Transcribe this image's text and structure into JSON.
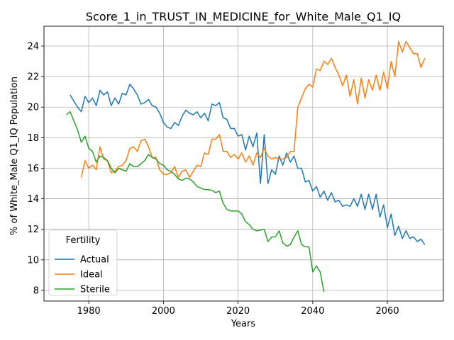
{
  "chart_data": {
    "type": "line",
    "title": "Score_1_in_TRUST_IN_MEDICINE_for_White_Male_Q1_IQ",
    "xlabel": "Years",
    "ylabel": "% of White_Male Q1_IQ Population",
    "xlim": [
      1968,
      2075
    ],
    "ylim": [
      7.3,
      25.3
    ],
    "xticks": [
      1980,
      2000,
      2020,
      2040,
      2060
    ],
    "yticks": [
      8,
      10,
      12,
      14,
      16,
      18,
      20,
      22,
      24
    ],
    "grid": true,
    "legend": {
      "title": "Fertility",
      "placement": "lower-left"
    },
    "series": [
      {
        "name": "Actual",
        "color": "#1f77b4",
        "points": [
          [
            1975,
            20.8
          ],
          [
            1976,
            20.4
          ],
          [
            1977,
            20.0
          ],
          [
            1978,
            19.7
          ],
          [
            1979,
            20.7
          ],
          [
            1980,
            20.3
          ],
          [
            1981,
            20.6
          ],
          [
            1982,
            20.1
          ],
          [
            1983,
            21.1
          ],
          [
            1984,
            20.8
          ],
          [
            1985,
            21.0
          ],
          [
            1986,
            20.1
          ],
          [
            1987,
            20.6
          ],
          [
            1988,
            20.2
          ],
          [
            1989,
            20.9
          ],
          [
            1990,
            20.8
          ],
          [
            1991,
            21.5
          ],
          [
            1992,
            21.2
          ],
          [
            1993,
            20.8
          ],
          [
            1994,
            20.2
          ],
          [
            1995,
            20.3
          ],
          [
            1996,
            20.5
          ],
          [
            1997,
            20.1
          ],
          [
            1998,
            20.0
          ],
          [
            1999,
            19.6
          ],
          [
            2000,
            19.0
          ],
          [
            2001,
            18.7
          ],
          [
            2002,
            18.6
          ],
          [
            2003,
            19.0
          ],
          [
            2004,
            18.8
          ],
          [
            2005,
            19.4
          ],
          [
            2006,
            19.8
          ],
          [
            2007,
            19.6
          ],
          [
            2008,
            19.5
          ],
          [
            2009,
            19.7
          ],
          [
            2010,
            19.3
          ],
          [
            2011,
            19.6
          ],
          [
            2012,
            19.1
          ],
          [
            2013,
            20.2
          ],
          [
            2014,
            20.1
          ],
          [
            2015,
            20.3
          ],
          [
            2016,
            19.3
          ],
          [
            2017,
            19.2
          ],
          [
            2018,
            18.6
          ],
          [
            2019,
            18.6
          ],
          [
            2020,
            18.1
          ],
          [
            2021,
            18.2
          ],
          [
            2022,
            17.2
          ],
          [
            2023,
            18.1
          ],
          [
            2024,
            17.4
          ],
          [
            2025,
            18.3
          ],
          [
            2026,
            15.0
          ],
          [
            2027,
            18.2
          ],
          [
            2028,
            15.0
          ],
          [
            2029,
            15.9
          ],
          [
            2030,
            15.6
          ],
          [
            2031,
            16.8
          ],
          [
            2032,
            16.2
          ],
          [
            2033,
            17.0
          ],
          [
            2034,
            16.4
          ],
          [
            2035,
            16.8
          ],
          [
            2036,
            16.0
          ],
          [
            2037,
            16.0
          ],
          [
            2038,
            15.1
          ],
          [
            2039,
            15.2
          ],
          [
            2040,
            14.5
          ],
          [
            2041,
            14.8
          ],
          [
            2042,
            14.1
          ],
          [
            2043,
            14.5
          ],
          [
            2044,
            13.9
          ],
          [
            2045,
            14.4
          ],
          [
            2046,
            13.8
          ],
          [
            2047,
            13.9
          ],
          [
            2048,
            13.5
          ],
          [
            2049,
            13.6
          ],
          [
            2050,
            13.5
          ],
          [
            2051,
            14.0
          ],
          [
            2052,
            13.5
          ],
          [
            2053,
            14.3
          ],
          [
            2054,
            13.3
          ],
          [
            2055,
            14.3
          ],
          [
            2056,
            13.3
          ],
          [
            2057,
            14.3
          ],
          [
            2058,
            12.8
          ],
          [
            2059,
            13.6
          ],
          [
            2060,
            12.1
          ],
          [
            2061,
            13.0
          ],
          [
            2062,
            11.6
          ],
          [
            2063,
            12.2
          ],
          [
            2064,
            11.4
          ],
          [
            2065,
            11.9
          ],
          [
            2066,
            11.4
          ],
          [
            2067,
            11.5
          ],
          [
            2068,
            11.2
          ],
          [
            2069,
            11.35
          ],
          [
            2070,
            11.0
          ]
        ]
      },
      {
        "name": "Ideal",
        "color": "#ff7f0e",
        "points": [
          [
            1978,
            15.4
          ],
          [
            1979,
            16.5
          ],
          [
            1980,
            16.0
          ],
          [
            1981,
            16.2
          ],
          [
            1982,
            15.9
          ],
          [
            1983,
            17.4
          ],
          [
            1984,
            16.6
          ],
          [
            1985,
            16.5
          ],
          [
            1986,
            15.7
          ],
          [
            1987,
            15.8
          ],
          [
            1988,
            16.1
          ],
          [
            1989,
            16.2
          ],
          [
            1990,
            16.5
          ],
          [
            1991,
            17.3
          ],
          [
            1992,
            17.4
          ],
          [
            1993,
            17.1
          ],
          [
            1994,
            17.8
          ],
          [
            1995,
            17.9
          ],
          [
            1996,
            17.4
          ],
          [
            1997,
            16.7
          ],
          [
            1998,
            16.7
          ],
          [
            1999,
            15.9
          ],
          [
            2000,
            15.6
          ],
          [
            2001,
            15.6
          ],
          [
            2002,
            15.7
          ],
          [
            2003,
            16.1
          ],
          [
            2004,
            15.4
          ],
          [
            2005,
            15.8
          ],
          [
            2006,
            15.9
          ],
          [
            2007,
            15.4
          ],
          [
            2008,
            15.8
          ],
          [
            2009,
            16.2
          ],
          [
            2010,
            16.1
          ],
          [
            2011,
            17.0
          ],
          [
            2012,
            16.9
          ],
          [
            2013,
            17.9
          ],
          [
            2014,
            17.9
          ],
          [
            2015,
            18.2
          ],
          [
            2016,
            17.1
          ],
          [
            2017,
            17.1
          ],
          [
            2018,
            16.7
          ],
          [
            2019,
            16.9
          ],
          [
            2020,
            16.6
          ],
          [
            2021,
            17.0
          ],
          [
            2022,
            16.4
          ],
          [
            2023,
            16.8
          ],
          [
            2024,
            16.2
          ],
          [
            2025,
            17.0
          ],
          [
            2026,
            16.7
          ],
          [
            2027,
            17.3
          ],
          [
            2028,
            16.8
          ],
          [
            2029,
            16.6
          ],
          [
            2030,
            16.7
          ],
          [
            2031,
            16.6
          ],
          [
            2032,
            16.6
          ],
          [
            2033,
            16.7
          ],
          [
            2034,
            17.1
          ],
          [
            2035,
            17.1
          ],
          [
            2036,
            20.0
          ],
          [
            2037,
            20.6
          ],
          [
            2038,
            21.2
          ],
          [
            2039,
            21.5
          ],
          [
            2040,
            21.3
          ],
          [
            2041,
            22.5
          ],
          [
            2042,
            22.4
          ],
          [
            2043,
            23.0
          ],
          [
            2044,
            22.8
          ],
          [
            2045,
            23.2
          ],
          [
            2046,
            22.6
          ],
          [
            2047,
            22.1
          ],
          [
            2048,
            21.4
          ],
          [
            2049,
            22.1
          ],
          [
            2050,
            20.7
          ],
          [
            2051,
            21.8
          ],
          [
            2052,
            20.2
          ],
          [
            2053,
            21.9
          ],
          [
            2054,
            20.6
          ],
          [
            2055,
            21.8
          ],
          [
            2056,
            21.1
          ],
          [
            2057,
            22.1
          ],
          [
            2058,
            21.1
          ],
          [
            2059,
            22.3
          ],
          [
            2060,
            21.2
          ],
          [
            2061,
            23.0
          ],
          [
            2062,
            22.0
          ],
          [
            2063,
            24.3
          ],
          [
            2064,
            23.6
          ],
          [
            2065,
            24.3
          ],
          [
            2066,
            23.9
          ],
          [
            2067,
            23.5
          ],
          [
            2068,
            23.5
          ],
          [
            2069,
            22.6
          ],
          [
            2070,
            23.2
          ]
        ]
      },
      {
        "name": "Sterile",
        "color": "#2ca02c",
        "points": [
          [
            1974,
            19.5
          ],
          [
            1975,
            19.7
          ],
          [
            1976,
            19.1
          ],
          [
            1977,
            18.5
          ],
          [
            1978,
            17.7
          ],
          [
            1979,
            18.1
          ],
          [
            1980,
            17.3
          ],
          [
            1981,
            17.1
          ],
          [
            1982,
            16.4
          ],
          [
            1983,
            16.8
          ],
          [
            1984,
            16.7
          ],
          [
            1985,
            16.5
          ],
          [
            1986,
            16.0
          ],
          [
            1987,
            15.7
          ],
          [
            1988,
            16.0
          ],
          [
            1989,
            15.9
          ],
          [
            1990,
            15.8
          ],
          [
            1991,
            16.3
          ],
          [
            1992,
            16.1
          ],
          [
            1993,
            16.1
          ],
          [
            1994,
            16.3
          ],
          [
            1995,
            16.5
          ],
          [
            1996,
            16.9
          ],
          [
            1997,
            16.7
          ],
          [
            1998,
            16.6
          ],
          [
            1999,
            16.3
          ],
          [
            2000,
            16.2
          ],
          [
            2001,
            15.9
          ],
          [
            2002,
            15.8
          ],
          [
            2003,
            15.6
          ],
          [
            2004,
            15.3
          ],
          [
            2005,
            15.2
          ],
          [
            2006,
            15.35
          ],
          [
            2007,
            15.3
          ],
          [
            2008,
            15.1
          ],
          [
            2009,
            14.8
          ],
          [
            2010,
            14.7
          ],
          [
            2011,
            14.6
          ],
          [
            2012,
            14.6
          ],
          [
            2013,
            14.55
          ],
          [
            2014,
            14.4
          ],
          [
            2015,
            14.5
          ],
          [
            2016,
            13.7
          ],
          [
            2017,
            13.3
          ],
          [
            2018,
            13.2
          ],
          [
            2019,
            13.2
          ],
          [
            2020,
            13.2
          ],
          [
            2021,
            13.0
          ],
          [
            2022,
            12.5
          ],
          [
            2023,
            12.3
          ],
          [
            2024,
            12.0
          ],
          [
            2025,
            11.9
          ],
          [
            2026,
            11.95
          ],
          [
            2027,
            12.0
          ],
          [
            2028,
            11.2
          ],
          [
            2029,
            11.5
          ],
          [
            2030,
            11.5
          ],
          [
            2031,
            11.9
          ],
          [
            2032,
            11.1
          ],
          [
            2033,
            10.9
          ],
          [
            2034,
            11.0
          ],
          [
            2035,
            11.5
          ],
          [
            2036,
            11.9
          ],
          [
            2037,
            11.0
          ],
          [
            2038,
            10.85
          ],
          [
            2039,
            10.85
          ],
          [
            2040,
            9.2
          ],
          [
            2041,
            9.6
          ],
          [
            2042,
            9.2
          ],
          [
            2043,
            7.9
          ]
        ]
      }
    ]
  }
}
